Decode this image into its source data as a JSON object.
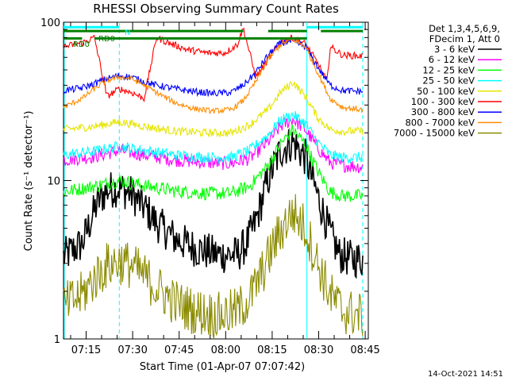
{
  "chart_data": {
    "type": "line",
    "title": "RHESSI Observing Summary Count Rates",
    "xlabel": "Start Time (01-Apr-07 07:07:42)",
    "ylabel": "Count Rate (s⁻¹ detector⁻¹)",
    "yscale": "log",
    "ylim": [
      1,
      100
    ],
    "xlim": [
      "07:07:42",
      "08:46:00"
    ],
    "x_ticks": [
      "07:15",
      "07:30",
      "07:45",
      "08:00",
      "08:15",
      "08:30",
      "08:45"
    ],
    "y_ticks": [
      "1",
      "10",
      "100"
    ],
    "legend_header": [
      "Det 1,3,4,5,6,9,",
      "FDecim 1, Att 0"
    ],
    "legend_position": "right",
    "footer_date": "14-Oct-2021 14:51",
    "flag_labels": [
      "N",
      "RD0",
      "RD0"
    ],
    "vertical_markers": {
      "cyan_solid_minutes": [
        0.0,
        78.5
      ],
      "cyan_dashed_minutes": [
        18.0,
        96.5
      ]
    },
    "series": [
      {
        "name": "3 - 6 keV",
        "color": "#000000",
        "x": [
          0,
          6,
          11,
          14,
          18,
          22,
          26,
          30,
          36,
          43,
          50,
          56,
          59,
          62,
          66,
          70,
          74,
          78,
          82,
          86,
          89,
          93,
          96.5
        ],
        "y": [
          3.3,
          4.0,
          7.3,
          8.7,
          9.0,
          8.2,
          6.8,
          5.4,
          4.3,
          3.7,
          3.4,
          3.4,
          4.0,
          5.5,
          10.2,
          15.5,
          17.5,
          14.0,
          8.0,
          4.6,
          3.4,
          3.2,
          3.2
        ]
      },
      {
        "name": "6 - 12 keV",
        "color": "#ff00ff",
        "x": [
          0,
          10,
          18,
          26,
          36,
          46,
          54,
          60,
          66,
          70,
          74,
          78,
          82,
          86,
          90,
          96.5
        ],
        "y": [
          13.5,
          14.2,
          15.5,
          14.5,
          13.5,
          13.0,
          12.8,
          13.8,
          17.5,
          22.0,
          24.5,
          21.0,
          16.0,
          13.0,
          12.5,
          12.2
        ]
      },
      {
        "name": "12 - 25 keV",
        "color": "#00ff00",
        "x": [
          0,
          10,
          18,
          26,
          36,
          46,
          54,
          60,
          66,
          70,
          74,
          78,
          82,
          86,
          90,
          96.5
        ],
        "y": [
          8.5,
          9.2,
          10.0,
          9.3,
          8.6,
          8.3,
          8.3,
          9.2,
          12.5,
          17.0,
          21.0,
          17.0,
          11.5,
          8.5,
          8.0,
          8.0
        ]
      },
      {
        "name": "25 - 50 keV",
        "color": "#00ffff",
        "x": [
          0,
          10,
          18,
          26,
          36,
          46,
          54,
          60,
          66,
          70,
          74,
          78,
          82,
          86,
          90,
          96.5
        ],
        "y": [
          14.5,
          15.3,
          16.5,
          15.5,
          14.5,
          14.0,
          14.0,
          15.5,
          19.5,
          24.0,
          26.0,
          23.0,
          17.5,
          14.5,
          14.0,
          14.0
        ]
      },
      {
        "name": "50 - 100 keV",
        "color": "#e6e600",
        "x": [
          0,
          10,
          18,
          26,
          36,
          46,
          54,
          60,
          66,
          70,
          74,
          78,
          82,
          86,
          90,
          96.5
        ],
        "y": [
          21.0,
          22.0,
          23.5,
          22.0,
          20.5,
          20.0,
          20.0,
          22.5,
          28.0,
          36.0,
          42.0,
          34.0,
          25.0,
          21.0,
          20.5,
          20.5
        ]
      },
      {
        "name": "100 - 300 keV",
        "color": "#ff0000",
        "x": [
          0,
          6,
          10,
          14,
          18,
          22,
          26,
          30,
          34,
          40,
          46,
          52,
          56,
          58,
          62,
          66,
          70,
          74,
          78,
          82,
          85,
          86,
          90,
          96.5
        ],
        "y": [
          70,
          74,
          80,
          34,
          38,
          36,
          33,
          80,
          74,
          67,
          64,
          64,
          72,
          92,
          45,
          58,
          75,
          80,
          73,
          55,
          42,
          70,
          62,
          61
        ]
      },
      {
        "name": "300 - 800 keV",
        "color": "#0000ff",
        "x": [
          0,
          6,
          10,
          14,
          18,
          22,
          26,
          30,
          36,
          42,
          48,
          54,
          58,
          62,
          66,
          70,
          74,
          78,
          82,
          86,
          90,
          96.5
        ],
        "y": [
          37,
          38.5,
          41,
          44,
          46,
          45,
          42,
          40,
          38,
          36.5,
          35.5,
          36,
          40,
          48,
          62,
          74,
          76,
          70,
          52,
          40,
          37,
          36.5
        ]
      },
      {
        "name": "800 - 7000 keV",
        "color": "#ff8c00",
        "x": [
          0,
          6,
          10,
          14,
          18,
          22,
          26,
          30,
          36,
          42,
          48,
          54,
          58,
          62,
          66,
          70,
          74,
          78,
          82,
          86,
          90,
          96.5
        ],
        "y": [
          29,
          33,
          38,
          43,
          45,
          44,
          40,
          36,
          31,
          28.5,
          27.5,
          28,
          32,
          42,
          58,
          72,
          78,
          70,
          48,
          33,
          29,
          28
        ]
      },
      {
        "name": "7000 - 15000 keV",
        "color": "#8b8b00",
        "x": [
          0,
          6,
          10,
          14,
          18,
          22,
          26,
          30,
          36,
          42,
          50,
          56,
          60,
          64,
          68,
          72,
          74,
          78,
          82,
          86,
          90,
          96.5
        ],
        "y": [
          1.6,
          1.9,
          2.4,
          2.9,
          3.1,
          2.9,
          2.5,
          2.1,
          1.7,
          1.5,
          1.4,
          1.5,
          1.8,
          2.6,
          4.0,
          5.6,
          6.3,
          5.0,
          3.0,
          1.9,
          1.5,
          1.4
        ]
      }
    ],
    "flag_bars": [
      {
        "name": "N",
        "color": "#00ffff",
        "y_value": 93,
        "segments": [
          [
            0,
            18
          ],
          [
            78.5,
            96.5
          ]
        ]
      },
      {
        "name": "RD0-upper",
        "color": "#008000",
        "y_value": 88,
        "segments": [
          [
            0,
            58
          ],
          [
            66,
            78.5
          ],
          [
            83,
            96.5
          ]
        ]
      },
      {
        "name": "RD0-lower",
        "color": "#008000",
        "y_value": 79,
        "segments": [
          [
            0,
            6
          ],
          [
            10,
            78.5
          ]
        ]
      }
    ]
  }
}
